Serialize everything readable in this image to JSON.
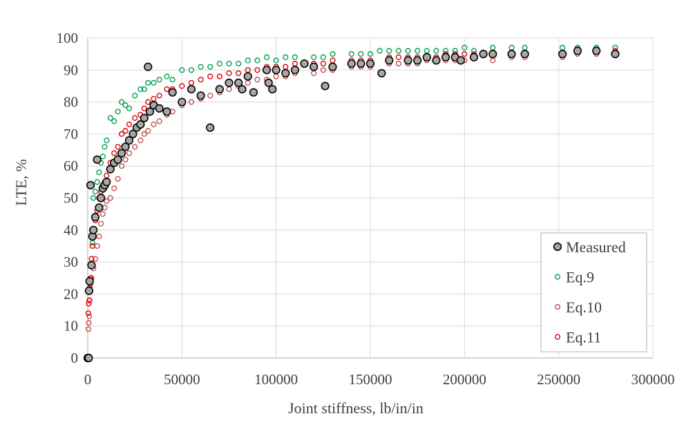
{
  "chart_data": {
    "type": "scatter",
    "title": "",
    "xlabel": "Joint stiffness, lb/in/in",
    "ylabel": "LTE, %",
    "xlim": [
      0,
      300000
    ],
    "ylim": [
      0,
      100
    ],
    "xticks": [
      0,
      50000,
      100000,
      150000,
      200000,
      250000,
      300000
    ],
    "yticks": [
      0,
      10,
      20,
      30,
      40,
      50,
      60,
      70,
      80,
      90,
      100
    ],
    "xtick_labels": [
      "0",
      "50000",
      "100000",
      "150000",
      "200000",
      "250000",
      "300000"
    ],
    "ytick_labels": [
      "0",
      "10",
      "20",
      "30",
      "40",
      "50",
      "60",
      "70",
      "80",
      "90",
      "100"
    ],
    "grid": true,
    "legend_position": "bottom-right",
    "series": [
      {
        "name": "Measured",
        "marker": "filled-circle",
        "color": "#000000",
        "fill": "#a6a6a6",
        "points": [
          [
            0,
            0
          ],
          [
            500,
            0
          ],
          [
            700,
            21
          ],
          [
            1000,
            24
          ],
          [
            1500,
            54
          ],
          [
            2000,
            29
          ],
          [
            2500,
            38
          ],
          [
            3000,
            40
          ],
          [
            4000,
            44
          ],
          [
            5000,
            62
          ],
          [
            6000,
            47
          ],
          [
            7000,
            50
          ],
          [
            8000,
            53
          ],
          [
            9000,
            54
          ],
          [
            10000,
            55
          ],
          [
            12000,
            59
          ],
          [
            14000,
            61
          ],
          [
            16000,
            62
          ],
          [
            18000,
            64
          ],
          [
            20000,
            66
          ],
          [
            22000,
            68
          ],
          [
            24000,
            70
          ],
          [
            26000,
            72
          ],
          [
            28000,
            73
          ],
          [
            30000,
            75
          ],
          [
            32000,
            91
          ],
          [
            33000,
            77
          ],
          [
            35000,
            79
          ],
          [
            38000,
            78
          ],
          [
            42000,
            77
          ],
          [
            45000,
            83
          ],
          [
            50000,
            80
          ],
          [
            55000,
            84
          ],
          [
            60000,
            82
          ],
          [
            65000,
            72
          ],
          [
            70000,
            84
          ],
          [
            75000,
            86
          ],
          [
            80000,
            86
          ],
          [
            82000,
            84
          ],
          [
            85000,
            88
          ],
          [
            88000,
            83
          ],
          [
            95000,
            90
          ],
          [
            96000,
            86
          ],
          [
            98000,
            84
          ],
          [
            100000,
            90
          ],
          [
            105000,
            89
          ],
          [
            110000,
            90
          ],
          [
            115000,
            92
          ],
          [
            120000,
            91
          ],
          [
            126000,
            85
          ],
          [
            130000,
            91
          ],
          [
            140000,
            92
          ],
          [
            145000,
            92
          ],
          [
            150000,
            92
          ],
          [
            156000,
            89
          ],
          [
            160000,
            93
          ],
          [
            170000,
            93
          ],
          [
            175000,
            93
          ],
          [
            180000,
            94
          ],
          [
            185000,
            93
          ],
          [
            190000,
            94
          ],
          [
            195000,
            94
          ],
          [
            198000,
            93
          ],
          [
            205000,
            94
          ],
          [
            210000,
            95
          ],
          [
            215000,
            95
          ],
          [
            225000,
            95
          ],
          [
            232000,
            95
          ],
          [
            252000,
            95
          ],
          [
            260000,
            96
          ],
          [
            270000,
            96
          ],
          [
            280000,
            95
          ]
        ]
      },
      {
        "name": "Eq.9",
        "marker": "open-circle",
        "color": "#00a050",
        "points": [
          [
            500,
            21
          ],
          [
            1000,
            24
          ],
          [
            1500,
            29
          ],
          [
            2500,
            36
          ],
          [
            3000,
            50
          ],
          [
            4000,
            52
          ],
          [
            5000,
            55
          ],
          [
            6000,
            58
          ],
          [
            7000,
            61
          ],
          [
            8000,
            63
          ],
          [
            9000,
            66
          ],
          [
            10000,
            68
          ],
          [
            12000,
            75
          ],
          [
            14000,
            74
          ],
          [
            16000,
            77
          ],
          [
            18000,
            80
          ],
          [
            20000,
            79
          ],
          [
            22000,
            78
          ],
          [
            25000,
            82
          ],
          [
            28000,
            84
          ],
          [
            30000,
            84
          ],
          [
            32000,
            86
          ],
          [
            35000,
            86
          ],
          [
            38000,
            87
          ],
          [
            42000,
            88
          ],
          [
            45000,
            87
          ],
          [
            50000,
            90
          ],
          [
            55000,
            90
          ],
          [
            60000,
            91
          ],
          [
            65000,
            91
          ],
          [
            70000,
            92
          ],
          [
            75000,
            92
          ],
          [
            80000,
            92
          ],
          [
            85000,
            93
          ],
          [
            90000,
            93
          ],
          [
            95000,
            94
          ],
          [
            100000,
            93
          ],
          [
            105000,
            94
          ],
          [
            110000,
            94
          ],
          [
            120000,
            94
          ],
          [
            125000,
            94
          ],
          [
            130000,
            95
          ],
          [
            140000,
            95
          ],
          [
            145000,
            95
          ],
          [
            150000,
            95
          ],
          [
            155000,
            96
          ],
          [
            160000,
            96
          ],
          [
            165000,
            96
          ],
          [
            170000,
            96
          ],
          [
            175000,
            96
          ],
          [
            180000,
            96
          ],
          [
            185000,
            96
          ],
          [
            190000,
            96
          ],
          [
            195000,
            96
          ],
          [
            200000,
            97
          ],
          [
            205000,
            96
          ],
          [
            215000,
            97
          ],
          [
            225000,
            97
          ],
          [
            232000,
            97
          ],
          [
            252000,
            97
          ],
          [
            260000,
            97
          ],
          [
            270000,
            97
          ],
          [
            280000,
            97
          ]
        ]
      },
      {
        "name": "Eq.10",
        "marker": "open-circle",
        "color": "#c0504d",
        "points": [
          [
            300,
            9
          ],
          [
            500,
            11
          ],
          [
            800,
            13
          ],
          [
            1000,
            18
          ],
          [
            1500,
            23
          ],
          [
            2000,
            25
          ],
          [
            3000,
            28
          ],
          [
            4000,
            31
          ],
          [
            5000,
            35
          ],
          [
            6000,
            38
          ],
          [
            7000,
            42
          ],
          [
            8000,
            45
          ],
          [
            9000,
            47
          ],
          [
            10000,
            49
          ],
          [
            12000,
            50
          ],
          [
            14000,
            53
          ],
          [
            16000,
            56
          ],
          [
            18000,
            60
          ],
          [
            20000,
            62
          ],
          [
            22000,
            64
          ],
          [
            25000,
            66
          ],
          [
            28000,
            68
          ],
          [
            30000,
            70
          ],
          [
            32000,
            71
          ],
          [
            35000,
            73
          ],
          [
            38000,
            74
          ],
          [
            42000,
            76
          ],
          [
            45000,
            77
          ],
          [
            50000,
            79
          ],
          [
            55000,
            80
          ],
          [
            60000,
            81
          ],
          [
            65000,
            82
          ],
          [
            70000,
            83
          ],
          [
            75000,
            84
          ],
          [
            80000,
            85
          ],
          [
            85000,
            86
          ],
          [
            90000,
            87
          ],
          [
            95000,
            87
          ],
          [
            100000,
            88
          ],
          [
            105000,
            88
          ],
          [
            110000,
            89
          ],
          [
            120000,
            89
          ],
          [
            125000,
            90
          ],
          [
            130000,
            90
          ],
          [
            140000,
            91
          ],
          [
            145000,
            91
          ],
          [
            150000,
            91
          ],
          [
            160000,
            92
          ],
          [
            165000,
            92
          ],
          [
            170000,
            92
          ],
          [
            175000,
            92
          ],
          [
            180000,
            93
          ],
          [
            185000,
            93
          ],
          [
            190000,
            93
          ],
          [
            195000,
            93
          ],
          [
            200000,
            93
          ],
          [
            205000,
            94
          ],
          [
            215000,
            93
          ],
          [
            225000,
            94
          ],
          [
            232000,
            94
          ],
          [
            252000,
            94
          ],
          [
            260000,
            95
          ],
          [
            270000,
            95
          ],
          [
            280000,
            95
          ]
        ]
      },
      {
        "name": "Eq.11",
        "marker": "open-circle",
        "color": "#e00000",
        "points": [
          [
            300,
            14
          ],
          [
            500,
            17
          ],
          [
            800,
            18
          ],
          [
            1000,
            22
          ],
          [
            1500,
            25
          ],
          [
            2000,
            31
          ],
          [
            2500,
            35
          ],
          [
            3000,
            40
          ],
          [
            4000,
            43
          ],
          [
            5000,
            46
          ],
          [
            6000,
            50
          ],
          [
            7000,
            52
          ],
          [
            8000,
            54
          ],
          [
            9000,
            55
          ],
          [
            10000,
            57
          ],
          [
            12000,
            61
          ],
          [
            14000,
            64
          ],
          [
            16000,
            66
          ],
          [
            18000,
            70
          ],
          [
            20000,
            71
          ],
          [
            22000,
            73
          ],
          [
            25000,
            75
          ],
          [
            28000,
            76
          ],
          [
            30000,
            78
          ],
          [
            32000,
            80
          ],
          [
            35000,
            81
          ],
          [
            38000,
            82
          ],
          [
            42000,
            84
          ],
          [
            45000,
            84
          ],
          [
            50000,
            85
          ],
          [
            55000,
            86
          ],
          [
            60000,
            87
          ],
          [
            65000,
            88
          ],
          [
            70000,
            88
          ],
          [
            75000,
            89
          ],
          [
            80000,
            89
          ],
          [
            85000,
            90
          ],
          [
            90000,
            90
          ],
          [
            95000,
            91
          ],
          [
            100000,
            91
          ],
          [
            105000,
            91
          ],
          [
            110000,
            92
          ],
          [
            120000,
            92
          ],
          [
            125000,
            92
          ],
          [
            130000,
            93
          ],
          [
            140000,
            93
          ],
          [
            145000,
            93
          ],
          [
            150000,
            93
          ],
          [
            160000,
            94
          ],
          [
            165000,
            94
          ],
          [
            170000,
            94
          ],
          [
            175000,
            94
          ],
          [
            180000,
            94
          ],
          [
            185000,
            94
          ],
          [
            190000,
            95
          ],
          [
            195000,
            95
          ],
          [
            200000,
            95
          ],
          [
            205000,
            95
          ],
          [
            215000,
            95
          ],
          [
            225000,
            95
          ],
          [
            232000,
            95
          ],
          [
            252000,
            95
          ],
          [
            260000,
            96
          ],
          [
            270000,
            96
          ],
          [
            280000,
            96
          ]
        ]
      }
    ]
  }
}
